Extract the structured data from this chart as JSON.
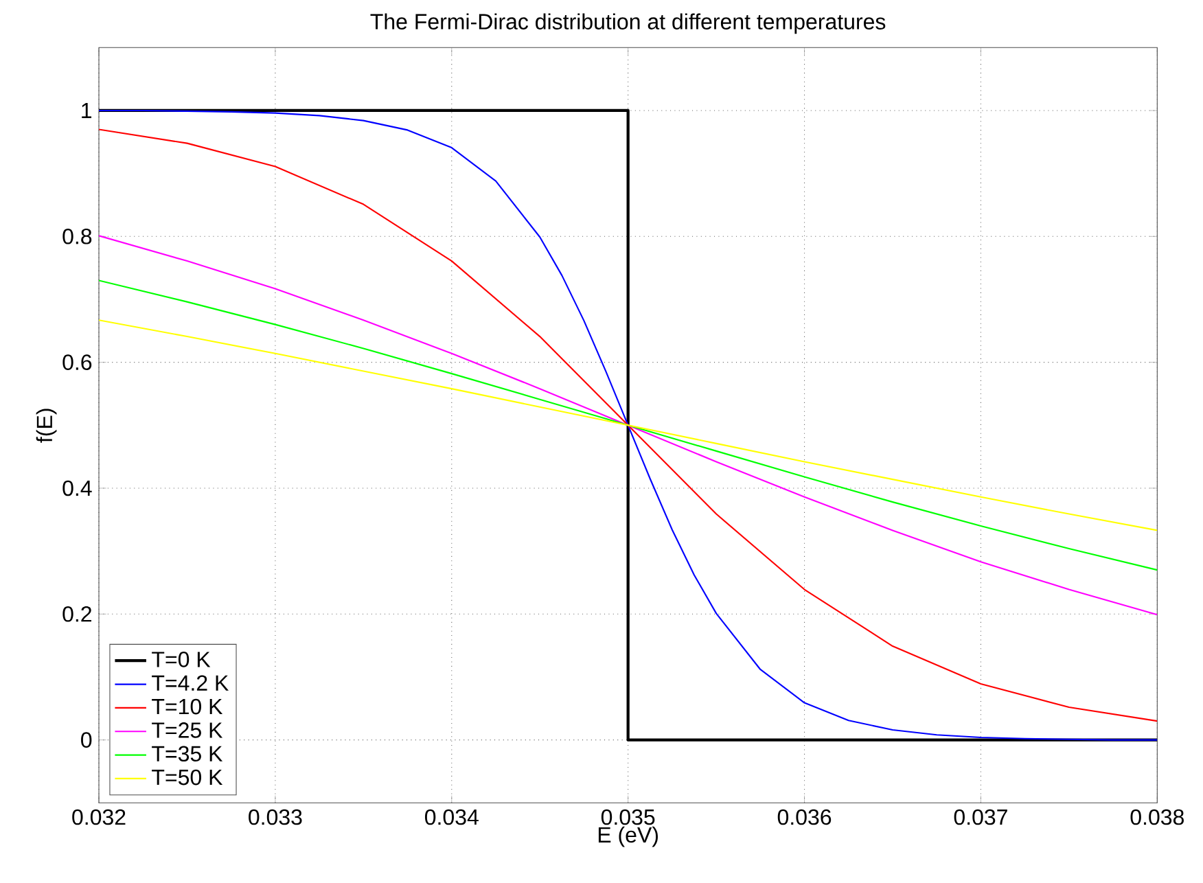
{
  "chart_data": {
    "type": "line",
    "title": "The Fermi-Dirac distribution at different temperatures",
    "xlabel": "E (eV)",
    "ylabel": "f(E)",
    "x": [
      0.032,
      0.0325,
      0.033,
      0.0335,
      0.034,
      0.0345,
      0.035,
      0.0355,
      0.036,
      0.0365,
      0.037,
      0.0375,
      0.038
    ],
    "xlim": [
      0.032,
      0.038
    ],
    "ylim": [
      -0.1,
      1.1
    ],
    "xticks": [
      0.032,
      0.033,
      0.034,
      0.035,
      0.036,
      0.037,
      0.038
    ],
    "yticks": [
      0,
      0.2,
      0.4,
      0.6,
      0.8,
      1
    ],
    "grid": true,
    "legend": "bottom left",
    "marker": "none",
    "line_style": "solid",
    "series": [
      {
        "name": "T=0 K",
        "color": "#000000",
        "x": [
          0.032,
          0.035,
          0.035,
          0.038
        ],
        "values": [
          1,
          1,
          0,
          0
        ]
      },
      {
        "name": "T=4.2 K",
        "color": "#0000ff",
        "x": [
          0.032,
          0.03225,
          0.0325,
          0.03275,
          0.033,
          0.03325,
          0.0335,
          0.03375,
          0.034,
          0.03425,
          0.0345,
          0.034625,
          0.03475,
          0.034875,
          0.035,
          0.035125,
          0.03525,
          0.035375,
          0.0355,
          0.03575,
          0.036,
          0.03625,
          0.0365,
          0.03675,
          0.037,
          0.03725,
          0.0375,
          0.03775,
          0.038
        ],
        "values": [
          1.0,
          1.0,
          0.999,
          0.998,
          0.996,
          0.992,
          0.984,
          0.969,
          0.941,
          0.888,
          0.799,
          0.738,
          0.666,
          0.585,
          0.5,
          0.415,
          0.334,
          0.262,
          0.201,
          0.112,
          0.059,
          0.031,
          0.016,
          0.008,
          0.004,
          0.002,
          0.001,
          0.0,
          0.0
        ]
      },
      {
        "name": "T=10 K",
        "color": "#ff0000",
        "values": [
          0.97,
          0.948,
          0.911,
          0.851,
          0.761,
          0.641,
          0.5,
          0.359,
          0.239,
          0.149,
          0.089,
          0.052,
          0.03
        ]
      },
      {
        "name": "T=25 K",
        "color": "#ff00ff",
        "values": [
          0.801,
          0.761,
          0.717,
          0.667,
          0.614,
          0.558,
          0.5,
          0.442,
          0.386,
          0.333,
          0.283,
          0.239,
          0.199
        ]
      },
      {
        "name": "T=35 K",
        "color": "#00ff00",
        "values": [
          0.73,
          0.696,
          0.66,
          0.622,
          0.582,
          0.541,
          0.5,
          0.459,
          0.418,
          0.378,
          0.34,
          0.304,
          0.27
        ]
      },
      {
        "name": "T=50 K",
        "color": "#ffff00",
        "values": [
          0.667,
          0.641,
          0.614,
          0.586,
          0.558,
          0.529,
          0.5,
          0.471,
          0.442,
          0.414,
          0.386,
          0.359,
          0.333
        ]
      }
    ]
  }
}
